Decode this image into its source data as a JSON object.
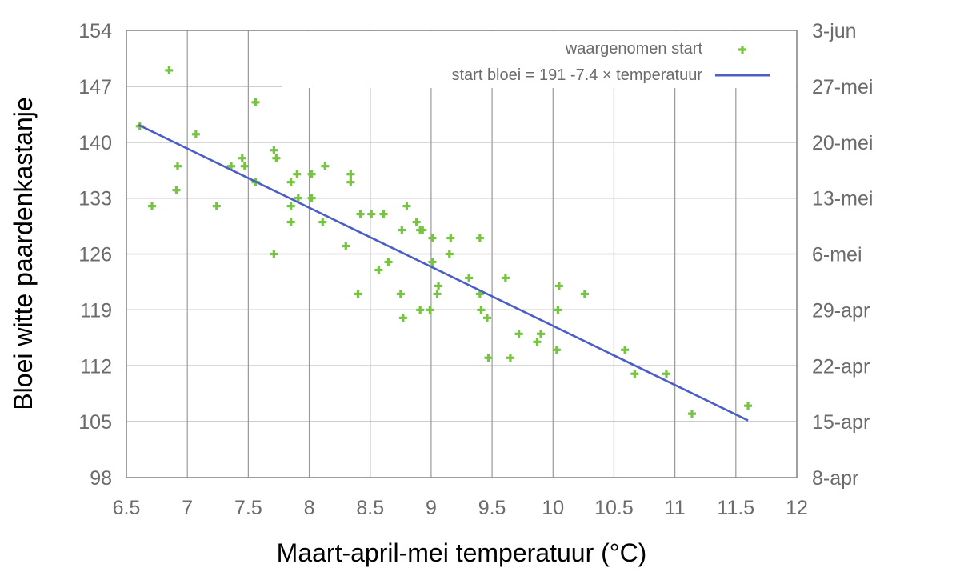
{
  "chart_data": {
    "type": "scatter",
    "xlabel": "Maart-april-mei temperatuur (°C)",
    "ylabel": "Bloei witte paardenkastanje",
    "xlim": [
      6.5,
      12
    ],
    "ylim": [
      98,
      154
    ],
    "grid": true,
    "x_ticks": [
      6.5,
      7,
      7.5,
      8,
      8.5,
      9,
      9.5,
      10,
      10.5,
      11,
      11.5,
      12
    ],
    "x_tick_labels": [
      "6.5",
      "7",
      "7.5",
      "8",
      "8.5",
      "9",
      "9.5",
      "10",
      "10.5",
      "11",
      "11.5",
      "12"
    ],
    "y_ticks": [
      98,
      105,
      112,
      119,
      126,
      133,
      140,
      147,
      154
    ],
    "y_tick_labels": [
      "98",
      "105",
      "112",
      "119",
      "126",
      "133",
      "140",
      "147",
      "154"
    ],
    "y2_tick_labels": [
      "8-apr",
      "15-apr",
      "22-apr",
      "29-apr",
      "6-mei",
      "13-mei",
      "20-mei",
      "27-mei",
      "3-jun"
    ],
    "legend_position": "top-right",
    "series": [
      {
        "name": "waargenomen start",
        "kind": "scatter",
        "color": "#76c442",
        "points": [
          [
            6.61,
            142
          ],
          [
            6.85,
            149
          ],
          [
            6.71,
            132
          ],
          [
            6.92,
            137
          ],
          [
            6.91,
            134
          ],
          [
            7.07,
            141
          ],
          [
            7.24,
            132
          ],
          [
            7.36,
            137
          ],
          [
            7.45,
            138
          ],
          [
            7.47,
            137
          ],
          [
            7.56,
            135
          ],
          [
            7.56,
            145
          ],
          [
            7.71,
            139
          ],
          [
            7.73,
            138
          ],
          [
            7.71,
            126
          ],
          [
            7.85,
            135
          ],
          [
            7.9,
            136
          ],
          [
            7.91,
            133
          ],
          [
            7.85,
            132
          ],
          [
            7.85,
            130
          ],
          [
            8.02,
            136
          ],
          [
            8.02,
            133
          ],
          [
            8.13,
            137
          ],
          [
            8.11,
            130
          ],
          [
            8.3,
            127
          ],
          [
            8.34,
            136
          ],
          [
            8.34,
            135
          ],
          [
            8.4,
            121
          ],
          [
            8.42,
            131
          ],
          [
            8.51,
            131
          ],
          [
            8.61,
            131
          ],
          [
            8.57,
            124
          ],
          [
            8.65,
            125
          ],
          [
            8.75,
            121
          ],
          [
            8.76,
            129
          ],
          [
            8.77,
            118
          ],
          [
            8.8,
            132
          ],
          [
            8.88,
            130
          ],
          [
            8.91,
            129
          ],
          [
            8.93,
            129
          ],
          [
            8.91,
            119
          ],
          [
            9.01,
            128
          ],
          [
            9.01,
            125
          ],
          [
            8.99,
            119
          ],
          [
            9.06,
            122
          ],
          [
            9.05,
            121
          ],
          [
            9.15,
            126
          ],
          [
            9.16,
            128
          ],
          [
            9.31,
            123
          ],
          [
            9.4,
            128
          ],
          [
            9.4,
            121
          ],
          [
            9.41,
            119
          ],
          [
            9.46,
            118
          ],
          [
            9.47,
            113
          ],
          [
            9.61,
            123
          ],
          [
            9.65,
            113
          ],
          [
            9.72,
            116
          ],
          [
            9.87,
            115
          ],
          [
            9.9,
            116
          ],
          [
            10.05,
            122
          ],
          [
            10.04,
            119
          ],
          [
            10.03,
            114
          ],
          [
            10.26,
            121
          ],
          [
            10.59,
            114
          ],
          [
            10.67,
            111
          ],
          [
            10.93,
            111
          ],
          [
            11.14,
            106
          ],
          [
            11.6,
            107
          ]
        ]
      },
      {
        "name": "start bloei = 191 -7.4 × temperatuur",
        "kind": "line",
        "color": "#4a5ec4",
        "intercept": 191,
        "slope": -7.4,
        "x_range": [
          6.6,
          11.6
        ]
      }
    ]
  }
}
